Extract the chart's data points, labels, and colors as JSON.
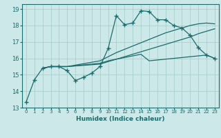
{
  "xlabel": "Humidex (Indice chaleur)",
  "xlim": [
    -0.5,
    23.5
  ],
  "ylim": [
    13,
    19.3
  ],
  "yticks": [
    13,
    14,
    15,
    16,
    17,
    18,
    19
  ],
  "xticks": [
    0,
    1,
    2,
    3,
    4,
    5,
    6,
    7,
    8,
    9,
    10,
    11,
    12,
    13,
    14,
    15,
    16,
    17,
    18,
    19,
    20,
    21,
    22,
    23
  ],
  "bg_color": "#cce8e8",
  "grid_color": "#aacfcf",
  "line_color": "#1a6b6b",
  "line_width": 0.9,
  "marker": "+",
  "marker_size": 4,
  "lines": [
    {
      "x": [
        0,
        1,
        2,
        3,
        4,
        5,
        6,
        7,
        8,
        9,
        10,
        11,
        12,
        13,
        14,
        15,
        16,
        17,
        18,
        19,
        20,
        21,
        22,
        23
      ],
      "y": [
        13.35,
        14.7,
        15.4,
        15.5,
        15.5,
        15.25,
        14.65,
        14.85,
        15.1,
        15.5,
        16.6,
        18.6,
        18.05,
        18.15,
        18.9,
        18.85,
        18.35,
        18.35,
        18.0,
        17.85,
        17.4,
        16.65,
        16.2,
        16.0
      ],
      "has_marker": true
    },
    {
      "x": [
        2,
        3,
        4,
        5,
        9,
        10,
        11,
        12,
        13,
        14,
        15,
        16,
        17,
        18,
        19,
        20,
        21,
        22,
        23
      ],
      "y": [
        15.4,
        15.5,
        15.5,
        15.5,
        15.65,
        15.8,
        15.95,
        16.1,
        16.25,
        16.4,
        16.55,
        16.7,
        16.85,
        17.0,
        17.15,
        17.3,
        17.5,
        17.65,
        17.8
      ],
      "has_marker": false
    },
    {
      "x": [
        2,
        3,
        4,
        5,
        9,
        10,
        11,
        12,
        13,
        14,
        15,
        16,
        17,
        18,
        19,
        20,
        21,
        22,
        23
      ],
      "y": [
        15.4,
        15.5,
        15.5,
        15.5,
        15.85,
        16.1,
        16.35,
        16.55,
        16.75,
        16.95,
        17.15,
        17.35,
        17.55,
        17.7,
        17.85,
        18.0,
        18.1,
        18.15,
        18.1
      ],
      "has_marker": false
    },
    {
      "x": [
        2,
        3,
        4,
        5,
        9,
        10,
        11,
        12,
        13,
        14,
        15,
        16,
        17,
        18,
        19,
        20,
        21,
        22,
        23
      ],
      "y": [
        15.4,
        15.5,
        15.5,
        15.5,
        15.7,
        15.85,
        15.95,
        16.05,
        16.15,
        16.25,
        15.85,
        15.9,
        15.95,
        16.0,
        16.05,
        16.1,
        16.15,
        16.2,
        16.0
      ],
      "has_marker": false
    }
  ]
}
